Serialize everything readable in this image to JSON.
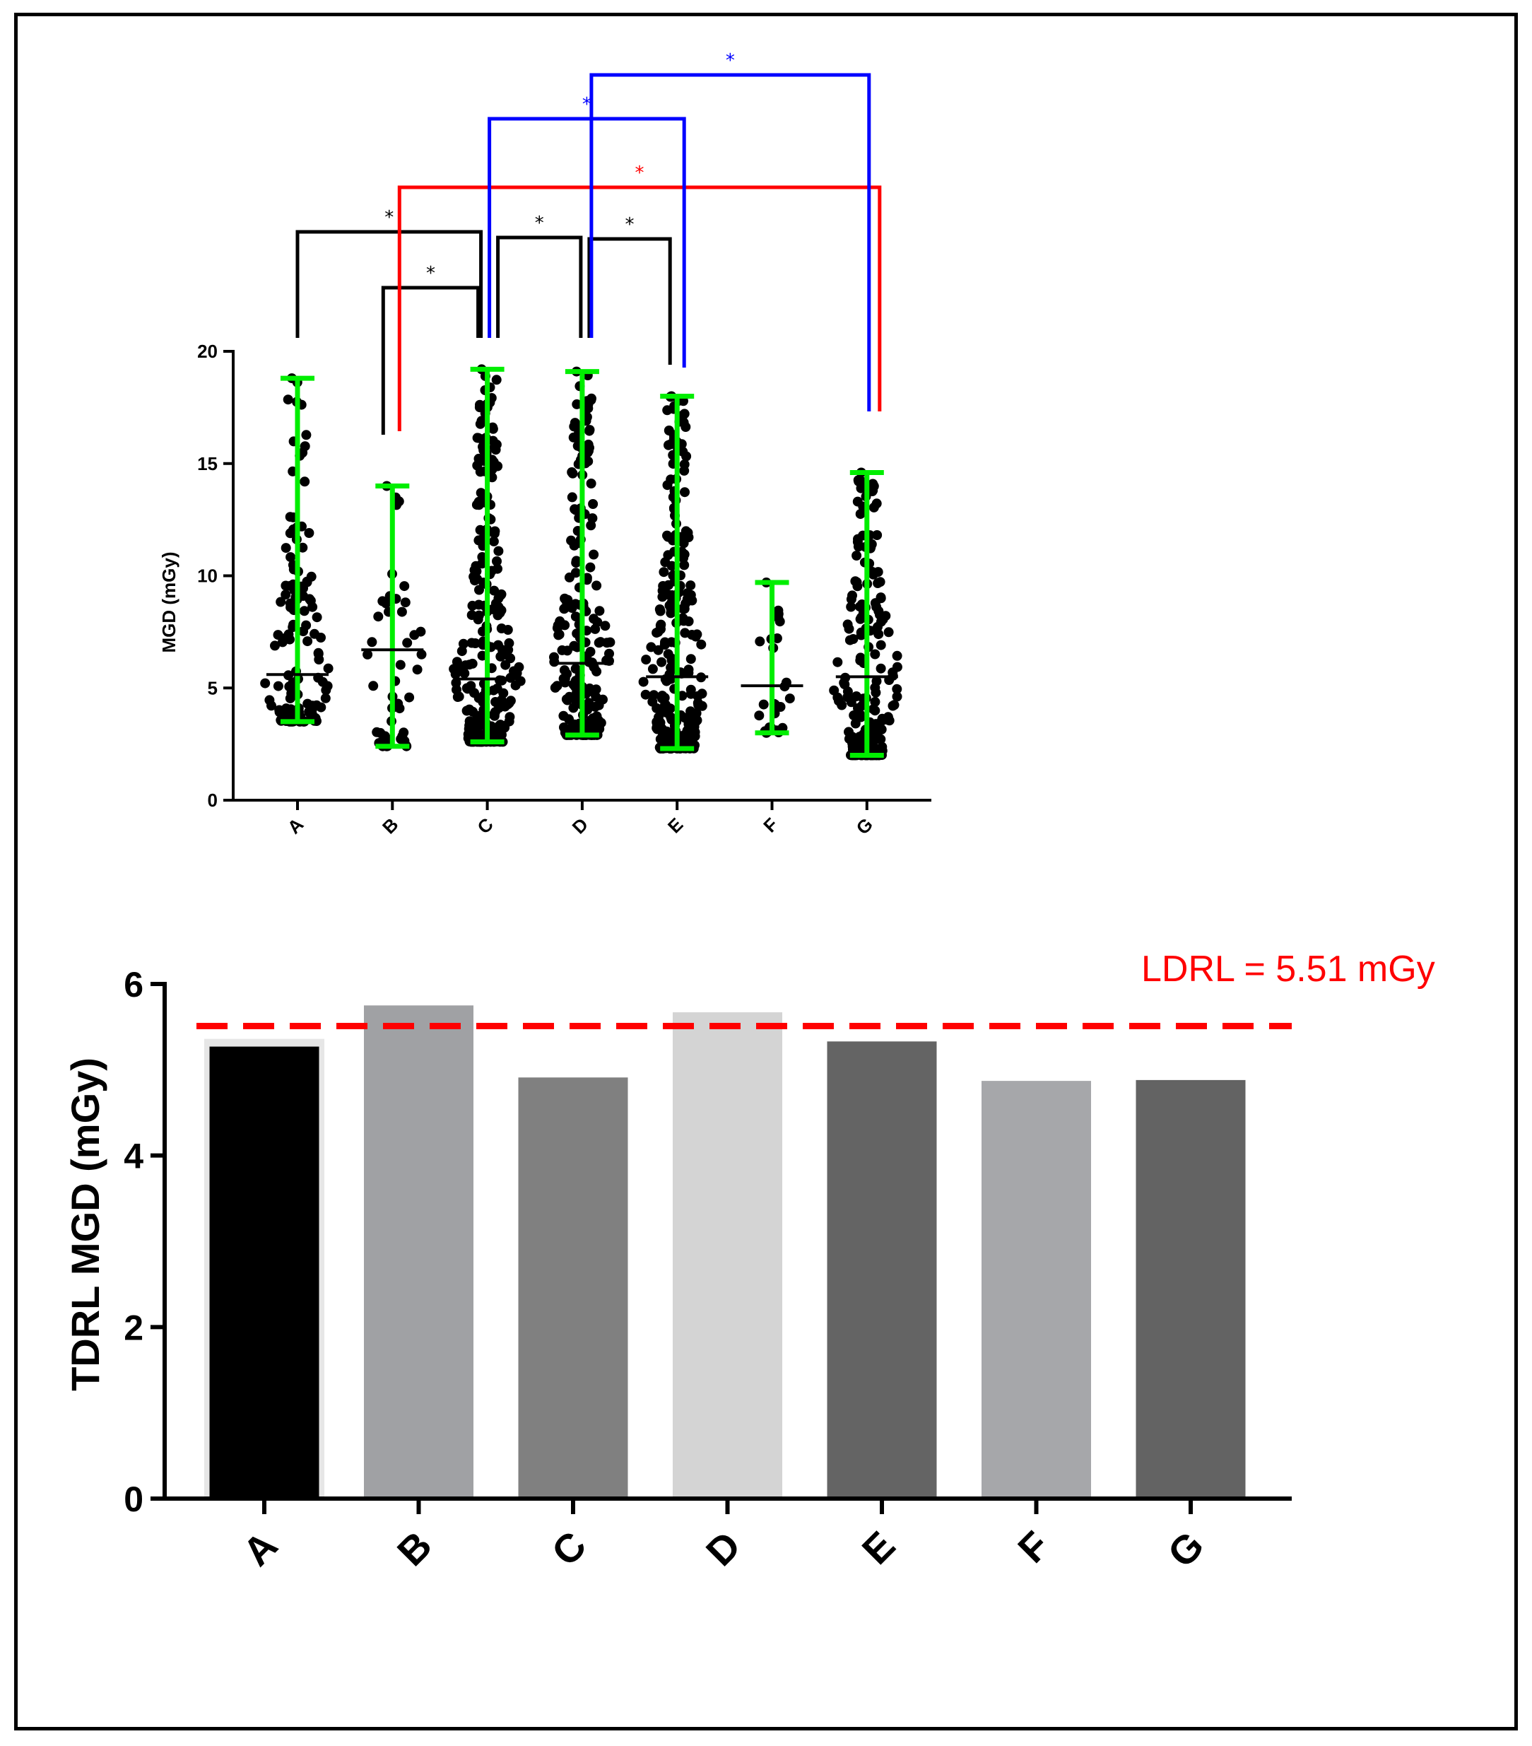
{
  "chart_data": [
    {
      "type": "scatter",
      "ylabel": "MGD (mGy)",
      "ylim": [
        0,
        20
      ],
      "yticks": [
        "0",
        "5",
        "10",
        "15",
        "20"
      ],
      "categories": [
        "A",
        "B",
        "C",
        "D",
        "E",
        "F",
        "G"
      ],
      "groups": [
        {
          "name": "A",
          "median": 5.6,
          "min": 3.5,
          "max": 18.8
        },
        {
          "name": "B",
          "median": 6.7,
          "min": 2.4,
          "max": 14.0
        },
        {
          "name": "C",
          "median": 5.4,
          "min": 2.6,
          "max": 19.2
        },
        {
          "name": "D",
          "median": 6.1,
          "min": 2.9,
          "max": 19.1
        },
        {
          "name": "E",
          "median": 5.5,
          "min": 2.3,
          "max": 18.0
        },
        {
          "name": "F",
          "median": 5.1,
          "min": 3.0,
          "max": 9.7
        },
        {
          "name": "G",
          "median": 5.5,
          "min": 2.0,
          "max": 14.6
        }
      ],
      "significance": [
        {
          "from": "A",
          "to": "C",
          "label": "*",
          "color": "#000000"
        },
        {
          "from": "B",
          "to": "C",
          "label": "*",
          "color": "#000000"
        },
        {
          "from": "C",
          "to": "D",
          "label": "*",
          "color": "#000000"
        },
        {
          "from": "D",
          "to": "E",
          "label": "*",
          "color": "#000000"
        },
        {
          "from": "B",
          "to": "G",
          "label": "*",
          "color": "#ff0000"
        },
        {
          "from": "C",
          "to": "E",
          "label": "*",
          "color": "#0000ff"
        },
        {
          "from": "D",
          "to": "G",
          "label": "*",
          "color": "#0000ff"
        }
      ],
      "colors": {
        "points": "#000000",
        "range_bar": "#00ee00",
        "median": "#000000"
      }
    },
    {
      "type": "bar",
      "ylabel": "TDRL MGD (mGy)",
      "ylim": [
        0,
        6
      ],
      "yticks": [
        "0",
        "2",
        "4",
        "6"
      ],
      "categories": [
        "A",
        "B",
        "C",
        "D",
        "E",
        "F",
        "G"
      ],
      "values": [
        5.27,
        5.75,
        4.91,
        5.67,
        5.33,
        4.87,
        4.88
      ],
      "bar_colors": [
        "#000000",
        "#a0a1a4",
        "#808080",
        "#d4d4d4",
        "#646464",
        "#a6a7aa",
        "#636363"
      ],
      "reference_line": {
        "label": "LDRL = 5.51 mGy",
        "value": 5.51,
        "color": "#ff0000",
        "style": "dashed"
      }
    }
  ]
}
